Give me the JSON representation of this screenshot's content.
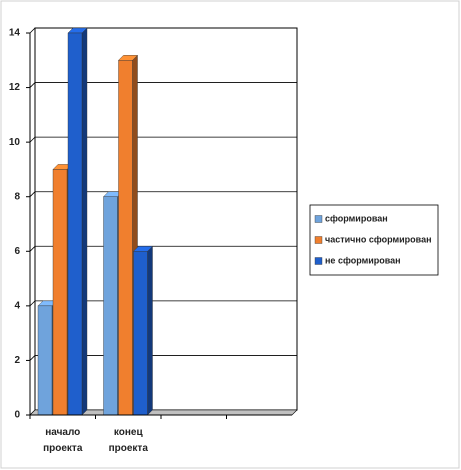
{
  "chart_data": {
    "type": "bar",
    "categories": [
      "начало проекта",
      "конец проекта",
      null,
      null
    ],
    "series": [
      {
        "name": "сформирован",
        "color": "#6fa3dc",
        "values": [
          4,
          8,
          null,
          null
        ]
      },
      {
        "name": "частично сформирован",
        "color": "#f07f2e",
        "values": [
          9,
          13,
          null,
          null
        ]
      },
      {
        "name": "не сформирован",
        "color": "#1f5fcc",
        "values": [
          14,
          6,
          null,
          null
        ]
      }
    ],
    "ylim": [
      0,
      14
    ],
    "yticks": [
      0,
      2,
      4,
      6,
      8,
      10,
      12,
      14
    ],
    "grid": true,
    "legend": "right"
  }
}
